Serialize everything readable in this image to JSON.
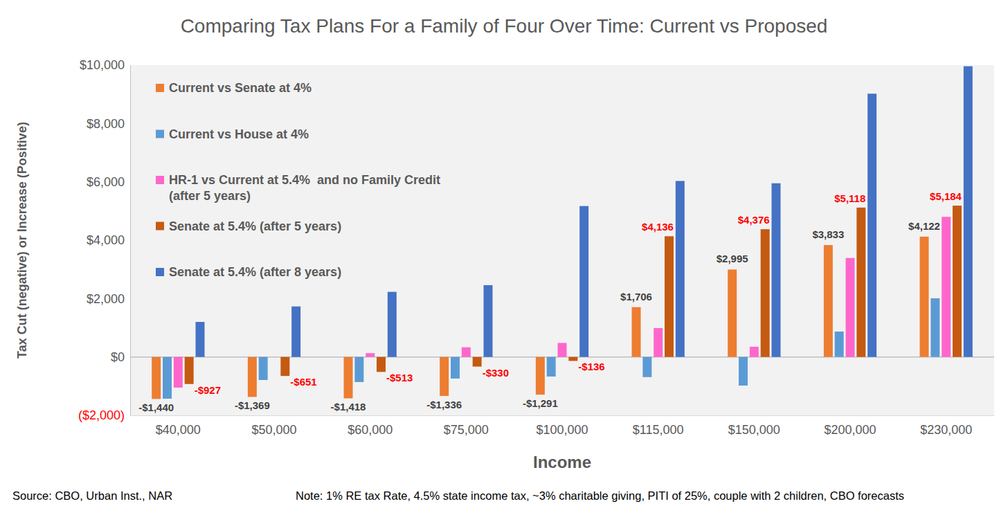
{
  "chart_data": {
    "type": "bar",
    "title": "Comparing Tax Plans For a Family of Four Over Time: Current vs Proposed",
    "xlabel": "Income",
    "ylabel": "Tax Cut (negative) or Increase (Positive)",
    "source": "Source: CBO, Urban Inst., NAR",
    "note": "Note: 1% RE tax Rate, 4.5% state income tax, ~3% charitable giving, PITI of 25%, couple with 2 children, CBO forecasts",
    "categories": [
      "$40,000",
      "$50,000",
      "$60,000",
      "$75,000",
      "$100,000",
      "$115,000",
      "$150,000",
      "$200,000",
      "$230,000"
    ],
    "series": [
      {
        "name": "Current vs Senate at 4%",
        "color": "#ed7d31",
        "values": [
          -1440,
          -1369,
          -1418,
          -1336,
          -1291,
          1706,
          2995,
          3833,
          4122
        ],
        "value_labels": [
          "-$1,440",
          "-$1,369",
          "-$1,418",
          "-$1,336",
          "-$1,291",
          "$1,706",
          "$2,995",
          "$3,833",
          "$4,122"
        ]
      },
      {
        "name": "Current vs House at 4%",
        "color": "#5b9bd5",
        "values": [
          -1430,
          -790,
          -860,
          -740,
          -670,
          -690,
          -980,
          870,
          2010
        ]
      },
      {
        "name": "HR-1 vs Current at 5.4%  and no Family Credit (after 5 years)",
        "color": "#ff66cc",
        "values": [
          -1050,
          0,
          130,
          330,
          480,
          990,
          350,
          3390,
          4800
        ]
      },
      {
        "name": "Senate at 5.4% (after 5 years)",
        "color": "#c55a11",
        "values": [
          -927,
          -651,
          -513,
          -330,
          -136,
          4136,
          4376,
          5118,
          5184
        ],
        "value_labels": [
          "-$927",
          "-$651",
          "-$513",
          "-$330",
          "-$136",
          "$4,136",
          "$4,376",
          "$5,118",
          "$5,184"
        ]
      },
      {
        "name": "Senate at 5.4% (after 8 years)",
        "color": "#4472c4",
        "values": [
          1200,
          1730,
          2230,
          2460,
          5170,
          6030,
          5950,
          9020,
          9960
        ]
      }
    ],
    "ylim": [
      -2000,
      10000
    ],
    "yticks": [
      {
        "value": -2000,
        "label": "($2,000)"
      },
      {
        "value": 0,
        "label": "$0"
      },
      {
        "value": 2000,
        "label": "$2,000"
      },
      {
        "value": 4000,
        "label": "$4,000"
      },
      {
        "value": 6000,
        "label": "$6,000"
      },
      {
        "value": 8000,
        "label": "$8,000"
      },
      {
        "value": 10000,
        "label": "$10,000"
      }
    ],
    "grid": false,
    "legend": "upper left",
    "data_labels": true
  }
}
